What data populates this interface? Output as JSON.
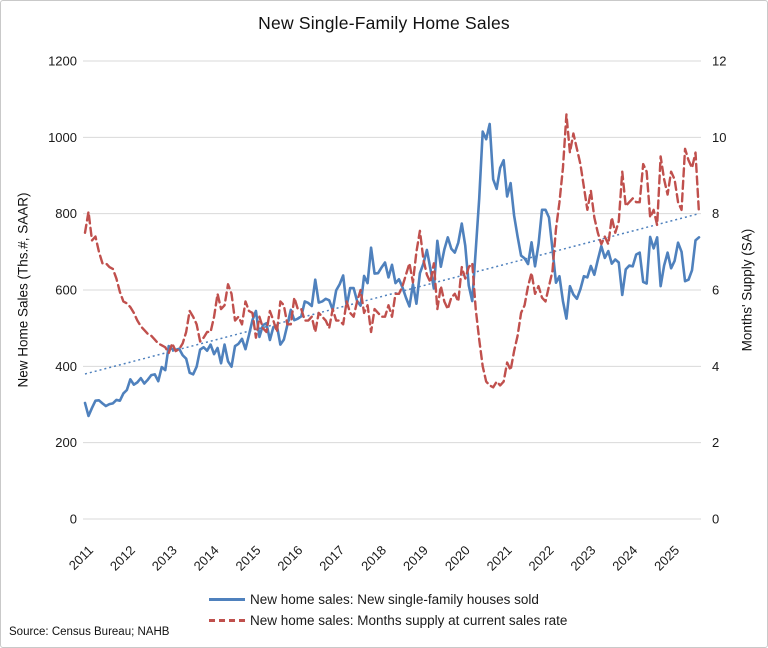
{
  "header": {
    "title": "New Single-Family Home Sales"
  },
  "source_note": "Source: Census Bureau; NAHB",
  "legend": {
    "items": [
      {
        "label": "New home sales: New single-family houses sold",
        "color": "#4F81BD",
        "style": "solid"
      },
      {
        "label": "New home sales: Months supply at current sales rate",
        "color": "#C0504D",
        "style": "dashed"
      }
    ]
  },
  "chart_data": {
    "type": "line",
    "title": "New Single-Family Home Sales",
    "x_frequency": "monthly",
    "x_start": "2011-01",
    "x_end": "2025-09",
    "x_tick_labels": [
      "2011",
      "2012",
      "2013",
      "2014",
      "2015",
      "2016",
      "2017",
      "2018",
      "2019",
      "2020",
      "2021",
      "2022",
      "2023",
      "2024",
      "2025"
    ],
    "left_axis": {
      "label": "New Home Sales (Ths.#, SAAR)",
      "min": 0,
      "max": 1200,
      "tick_step": 200,
      "ticks": [
        0,
        200,
        400,
        600,
        800,
        1000,
        1200
      ]
    },
    "right_axis": {
      "label": "Months' Supply (SA)",
      "min": 0,
      "max": 12,
      "tick_step": 2,
      "ticks": [
        0,
        2,
        4,
        6,
        8,
        10,
        12
      ]
    },
    "grid": "horizontal",
    "gridline_color": "#d9d9d9",
    "legend_position": "bottom",
    "series": [
      {
        "name": "New home sales: New single-family houses sold",
        "axis": "left",
        "color": "#4F81BD",
        "style": "solid",
        "width": 2.6,
        "values": [
          304,
          270,
          291,
          310,
          311,
          303,
          296,
          301,
          303,
          312,
          310,
          329,
          338,
          366,
          352,
          358,
          369,
          355,
          365,
          377,
          379,
          361,
          398,
          390,
          453,
          445,
          443,
          446,
          429,
          420,
          383,
          379,
          399,
          444,
          450,
          441,
          457,
          432,
          448,
          408,
          457,
          413,
          399,
          453,
          459,
          472,
          445,
          482,
          521,
          545,
          477,
          508,
          513,
          469,
          503,
          507,
          457,
          470,
          508,
          548,
          521,
          525,
          531,
          570,
          566,
          558,
          627,
          567,
          570,
          577,
          573,
          548,
          599,
          615,
          638,
          558,
          605,
          605,
          571,
          559,
          637,
          618,
          711,
          643,
          644,
          659,
          672,
          633,
          666,
          618,
          628,
          607,
          580,
          557,
          615,
          564,
          644,
          669,
          705,
          656,
          604,
          729,
          661,
          706,
          738,
          708,
          698,
          724,
          774,
          716,
          612,
          571,
          704,
          840,
          1015,
          995,
          1035,
          890,
          865,
          920,
          940,
          845,
          880,
          795,
          740,
          690,
          683,
          668,
          725,
          662,
          720,
          810,
          810,
          790,
          707,
          619,
          636,
          571,
          525,
          610,
          588,
          577,
          602,
          636,
          633,
          663,
          640,
          679,
          715,
          684,
          702,
          669,
          680,
          672,
          587,
          654,
          664,
          662,
          693,
          698,
          621,
          617,
          739,
          709,
          738,
          610,
          664,
          698,
          657,
          676,
          724,
          700,
          623,
          627,
          652,
          730,
          738
        ]
      },
      {
        "name": "New home sales: Months supply at current sales rate",
        "axis": "right",
        "color": "#C0504D",
        "style": "dashed",
        "width": 2.4,
        "values": [
          7.5,
          8.05,
          7.3,
          7.4,
          7.0,
          6.7,
          6.7,
          6.6,
          6.55,
          6.3,
          5.95,
          5.7,
          5.65,
          5.55,
          5.4,
          5.2,
          5.05,
          4.95,
          4.85,
          4.8,
          4.7,
          4.6,
          4.55,
          4.5,
          4.35,
          4.6,
          4.4,
          4.45,
          4.6,
          4.9,
          5.45,
          5.3,
          5.1,
          4.65,
          4.75,
          4.9,
          4.9,
          5.3,
          5.9,
          5.5,
          5.6,
          6.15,
          5.9,
          5.2,
          5.3,
          5.1,
          5.7,
          5.45,
          5.4,
          4.75,
          5.3,
          5.0,
          4.9,
          5.45,
          5.2,
          4.9,
          5.7,
          5.6,
          5.1,
          5.1,
          5.8,
          5.5,
          5.5,
          5.2,
          5.2,
          5.3,
          4.9,
          5.4,
          5.3,
          5.2,
          5.0,
          5.5,
          5.2,
          5.2,
          5.1,
          5.7,
          5.4,
          5.3,
          5.7,
          6.0,
          5.4,
          5.6,
          4.9,
          5.5,
          5.4,
          5.3,
          5.3,
          5.6,
          5.3,
          5.9,
          5.9,
          6.1,
          6.4,
          6.7,
          6.2,
          7.0,
          7.55,
          6.8,
          6.4,
          6.2,
          6.7,
          5.5,
          6.1,
          5.7,
          5.5,
          5.8,
          5.9,
          5.7,
          6.6,
          6.3,
          6.6,
          6.7,
          5.5,
          4.7,
          4.0,
          3.6,
          3.5,
          3.45,
          3.6,
          3.5,
          3.6,
          4.1,
          3.9,
          4.4,
          4.8,
          5.4,
          5.6,
          6.1,
          6.45,
          5.9,
          6.1,
          5.8,
          5.7,
          6.1,
          6.5,
          7.6,
          8.3,
          9.2,
          10.6,
          9.6,
          10.1,
          9.7,
          9.3,
          8.7,
          8.1,
          8.6,
          7.9,
          7.5,
          7.2,
          7.4,
          7.2,
          7.9,
          7.5,
          7.8,
          9.1,
          8.2,
          8.3,
          8.4,
          8.3,
          8.3,
          9.3,
          9.1,
          7.9,
          8.1,
          7.7,
          9.5,
          8.9,
          8.5,
          9.1,
          8.9,
          8.3,
          8.1,
          9.7,
          9.4,
          9.2,
          9.6,
          8.0
        ]
      }
    ],
    "trend_line": {
      "name": "Linear trend of new home sales",
      "axis": "left",
      "color": "#4F81BD",
      "style": "dotted",
      "width": 1.5,
      "start_value": 380,
      "end_value": 800
    }
  }
}
